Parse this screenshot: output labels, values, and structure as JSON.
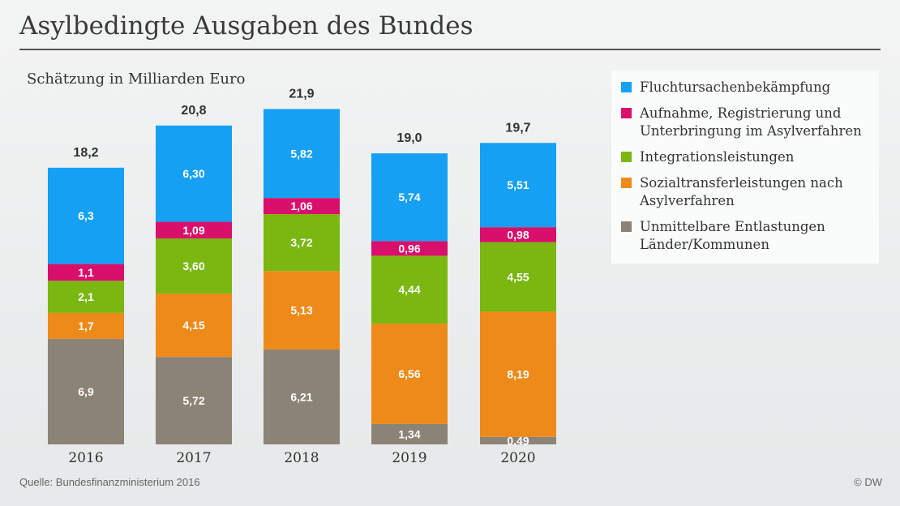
{
  "title": "Asylbedingte Ausgaben des Bundes",
  "subtitle": "Schätzung in Milliarden Euro",
  "source": "Quelle: Bundesfinanzministerium 2016",
  "logo": "© DW",
  "colors": {
    "fluchtursachen": "#16a0f3",
    "aufnahme": "#d8106b",
    "integration": "#7ab710",
    "sozial": "#ee8a1a",
    "entlastung": "#8c8377"
  },
  "chart_data": {
    "type": "bar",
    "stacked": true,
    "categories": [
      "2016",
      "2017",
      "2018",
      "2019",
      "2020"
    ],
    "totals": [
      "18,2",
      "20,8",
      "21,9",
      "19,0",
      "19,7"
    ],
    "total_values": [
      18.2,
      20.8,
      21.9,
      19.0,
      19.7
    ],
    "ylim": [
      0,
      22
    ],
    "grid": false,
    "legend_position": "right",
    "series": [
      {
        "name": "Unmittelbare Entlastungen Länder/Kommunen",
        "color_key": "entlastung",
        "values": [
          6.9,
          5.72,
          6.21,
          1.34,
          0.49
        ],
        "labels": [
          "6,9",
          "5,72",
          "6,21",
          "1,34",
          "0,49"
        ]
      },
      {
        "name": "Sozialtransferleistungen nach Asylverfahren",
        "color_key": "sozial",
        "values": [
          1.7,
          4.15,
          5.13,
          6.56,
          8.19
        ],
        "labels": [
          "1,7",
          "4,15",
          "5,13",
          "6,56",
          "8,19"
        ]
      },
      {
        "name": "Integrationsleistungen",
        "color_key": "integration",
        "values": [
          2.1,
          3.6,
          3.72,
          4.44,
          4.55
        ],
        "labels": [
          "2,1",
          "3,60",
          "3,72",
          "4,44",
          "4,55"
        ]
      },
      {
        "name": "Aufnahme, Registrierung und Unterbringung im Asylverfahren",
        "color_key": "aufnahme",
        "values": [
          1.1,
          1.09,
          1.06,
          0.96,
          0.98
        ],
        "labels": [
          "1,1",
          "1,09",
          "1,06",
          "0,96",
          "0,98"
        ]
      },
      {
        "name": "Fluchtursachenbekämpfung",
        "color_key": "fluchtursachen",
        "values": [
          6.3,
          6.3,
          5.82,
          5.74,
          5.51
        ],
        "labels": [
          "6,3",
          "6,30",
          "5,82",
          "5,74",
          "5,51"
        ]
      }
    ],
    "legend": [
      {
        "label": "Fluchtursachenbekämpfung",
        "color_key": "fluchtursachen"
      },
      {
        "label": "Aufnahme, Registrierung und Unterbringung im Asylverfahren",
        "color_key": "aufnahme"
      },
      {
        "label": "Integrationsleistungen",
        "color_key": "integration"
      },
      {
        "label": "Sozialtransferleistungen nach Asylverfahren",
        "color_key": "sozial"
      },
      {
        "label": "Unmittelbare Entlastungen Länder/Kommunen",
        "color_key": "entlastung"
      }
    ]
  }
}
